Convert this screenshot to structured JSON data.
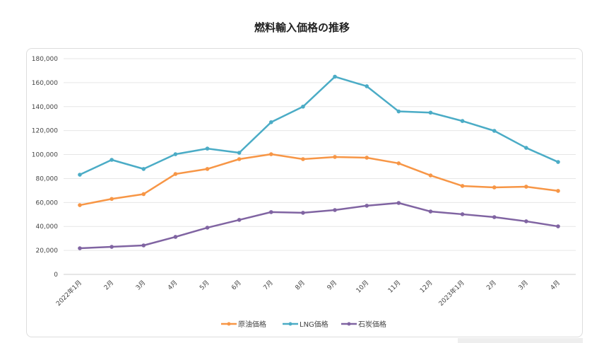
{
  "chart_data": {
    "type": "line",
    "title": "燃料輸入価格の推移",
    "categories": [
      "2022年1月",
      "2月",
      "3月",
      "4月",
      "5月",
      "6月",
      "7月",
      "8月",
      "9月",
      "10月",
      "11月",
      "12月",
      "2023年1月",
      "2月",
      "3月",
      "4月"
    ],
    "ylim": [
      0,
      180000
    ],
    "yticks": [
      0,
      20000,
      40000,
      60000,
      80000,
      100000,
      120000,
      140000,
      160000,
      180000
    ],
    "ytick_labels": [
      "0",
      "20,000",
      "40,000",
      "60,000",
      "80,000",
      "100,000",
      "120,000",
      "140,000",
      "160,000",
      "180,000"
    ],
    "grid": true,
    "legend_position": "bottom",
    "series": [
      {
        "name": "原油価格",
        "color": "#F79646",
        "values": [
          57800,
          63000,
          67000,
          83800,
          88000,
          96200,
          100300,
          96200,
          98000,
          97400,
          92700,
          82600,
          73800,
          72600,
          73200,
          69700
        ]
      },
      {
        "name": "LNG価格",
        "color": "#4BACC6",
        "values": [
          83200,
          95600,
          88000,
          100300,
          105000,
          101500,
          127000,
          140000,
          165000,
          157000,
          136000,
          135000,
          128000,
          119800,
          105600,
          93800
        ]
      },
      {
        "name": "石炭価格",
        "color": "#8064A2",
        "values": [
          21800,
          23000,
          24200,
          31300,
          39000,
          45500,
          52000,
          51400,
          53700,
          57300,
          59600,
          52500,
          50200,
          47800,
          44300,
          40100
        ]
      }
    ]
  }
}
